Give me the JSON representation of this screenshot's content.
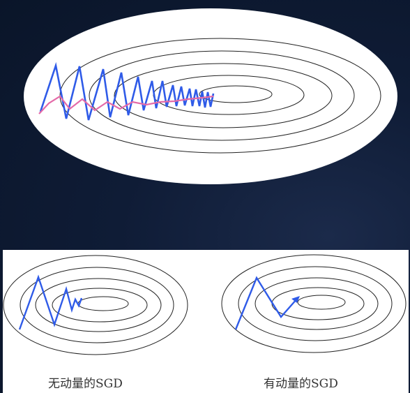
{
  "labels": {
    "without_momentum": "无动量的SGD",
    "with_momentum": "有动量的SGD"
  },
  "colors": {
    "background": "#0f1c36",
    "panel": "#ffffff",
    "contour": "#222222",
    "sgd_path": "#2f5be8",
    "momentum_path": "#e46aa8"
  }
}
